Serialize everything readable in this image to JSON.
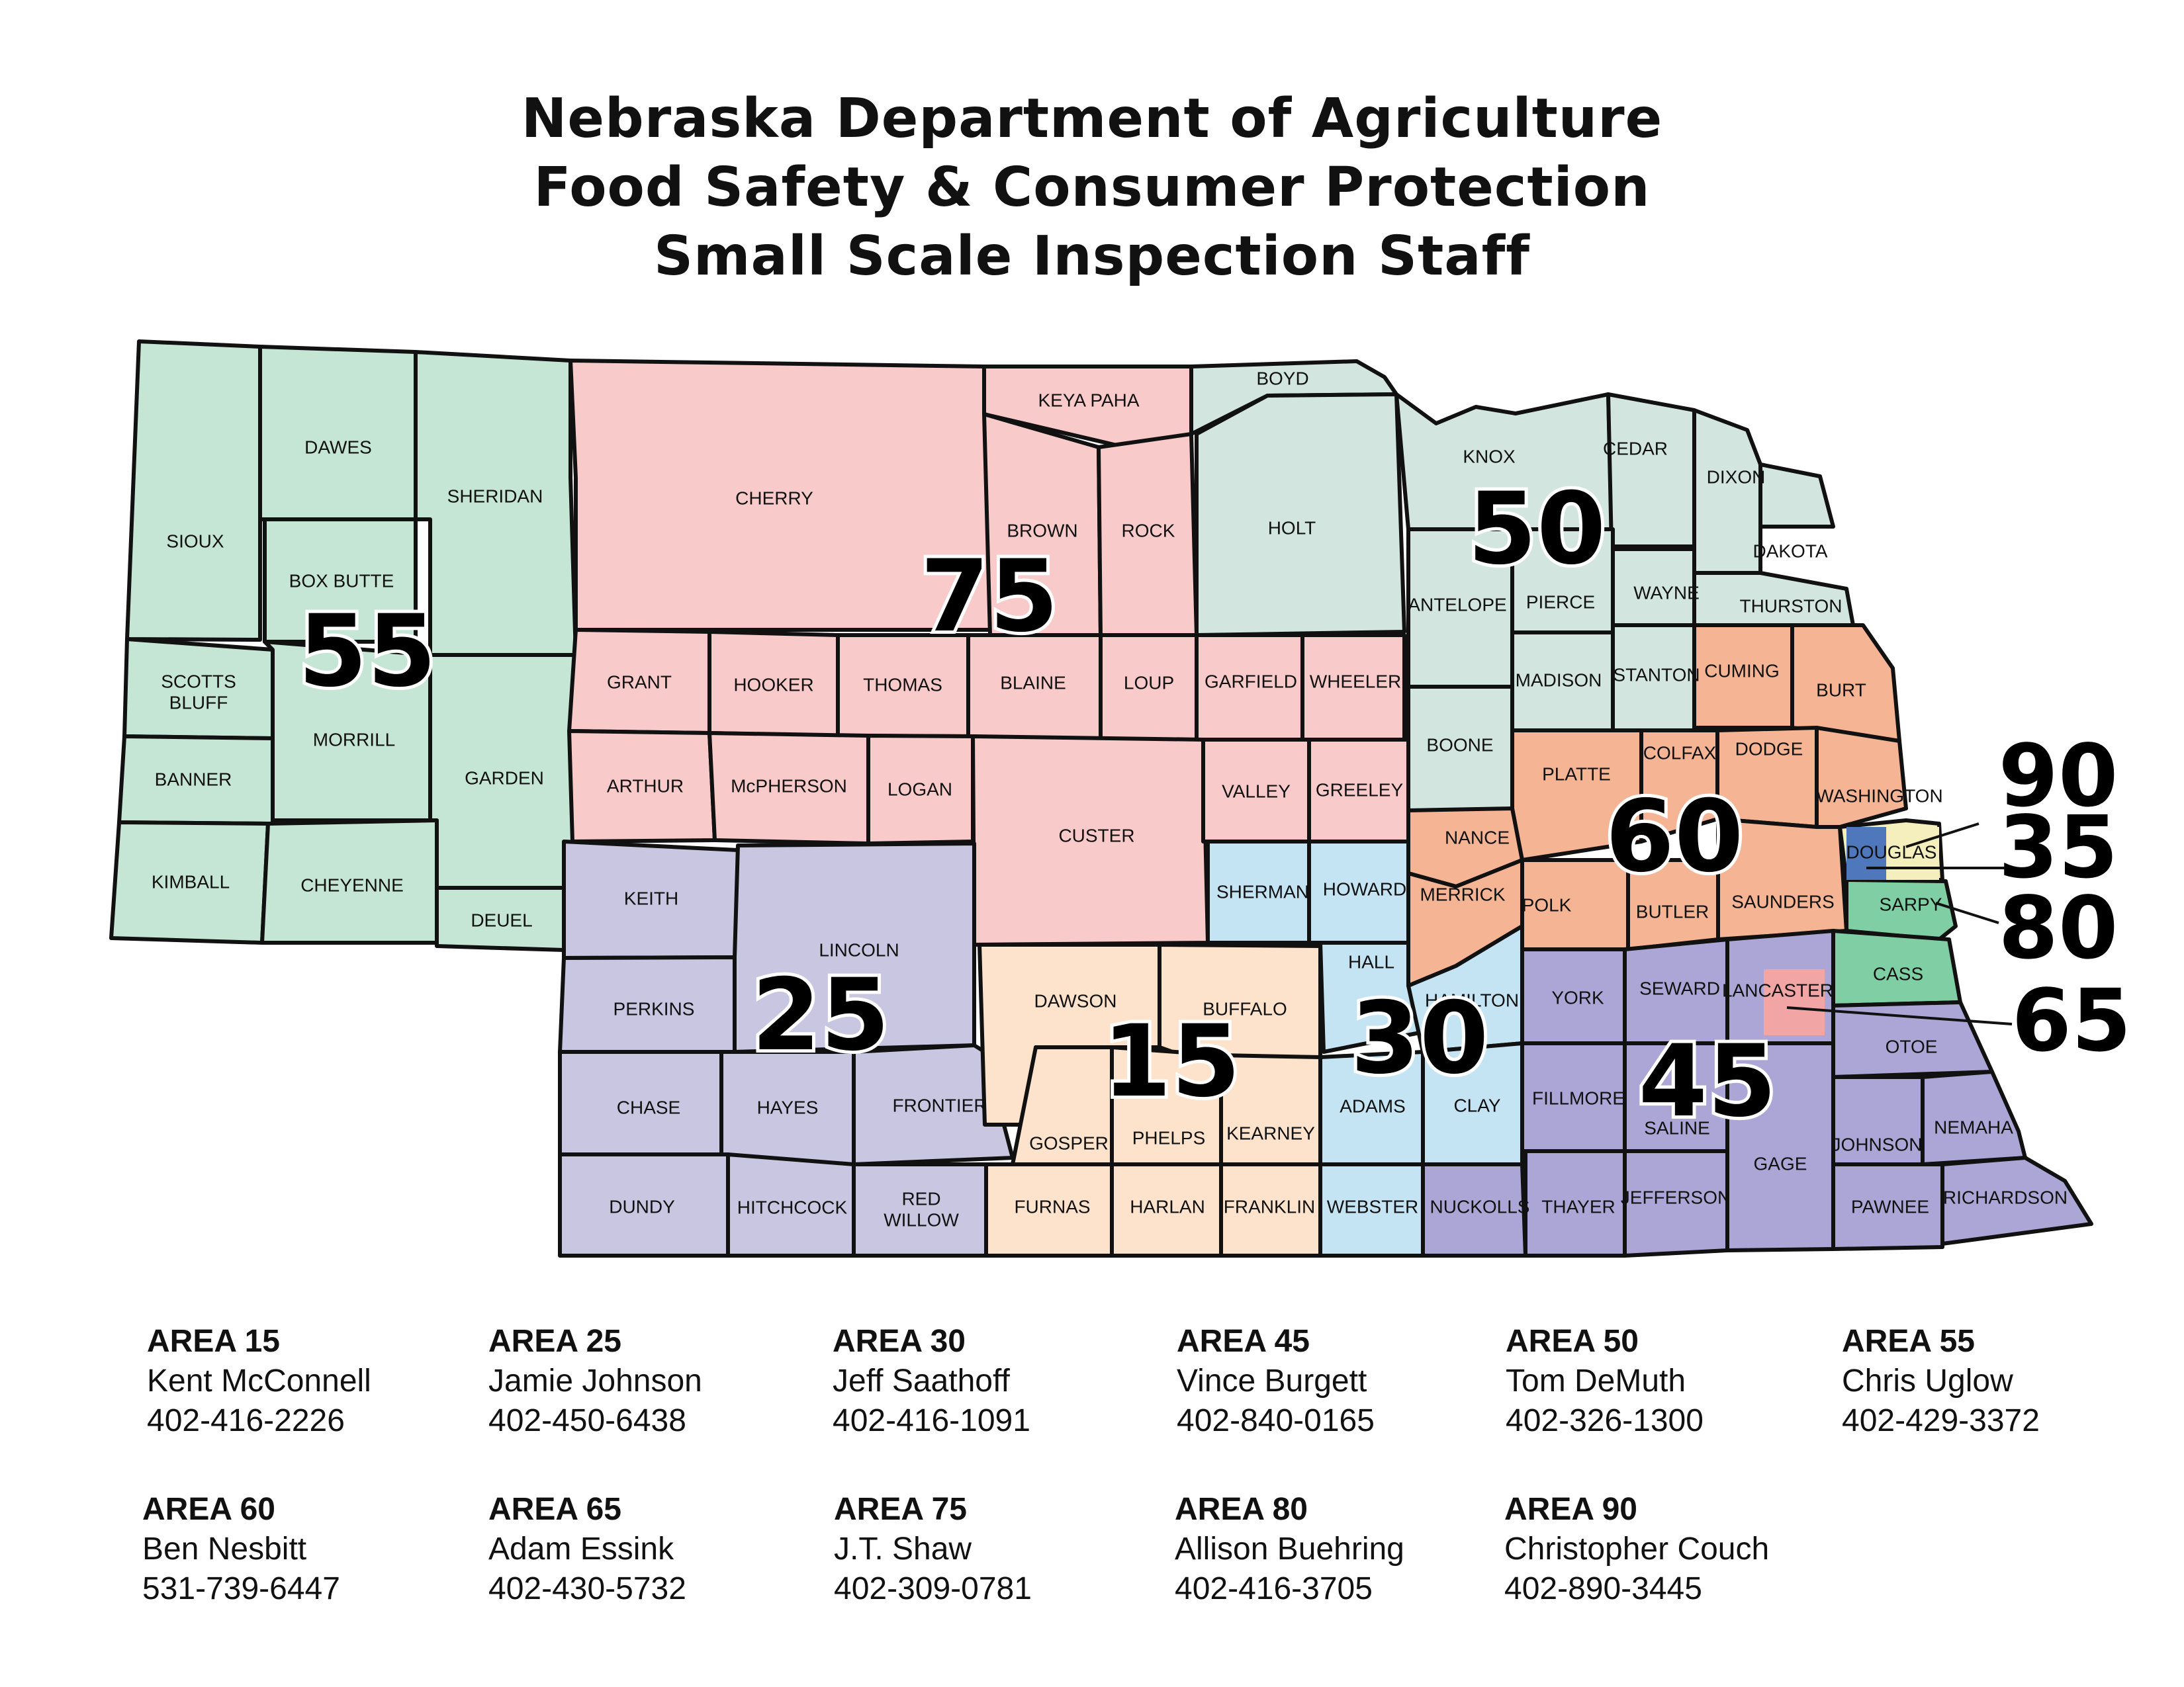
{
  "title": {
    "line1": "Nebraska Department of Agriculture",
    "line2": "Food Safety & Consumer Protection",
    "line3": "Small Scale Inspection Staff"
  },
  "colors": {
    "area15": "#fde3cc",
    "area25": "#c9c6e1",
    "area30": "#c5e4f3",
    "area45": "#aca6d6",
    "area50": "#d2e6df",
    "area55": "#c6e6d5",
    "area60": "#f5b595",
    "area65": "#f2a5a5",
    "area75": "#f8caca",
    "area80": "#7fcea4",
    "area90": "#f4efbd",
    "area35": "#4f77bb"
  },
  "counties": [
    {
      "name": "SIOUX",
      "area": "55"
    },
    {
      "name": "DAWES",
      "area": "55"
    },
    {
      "name": "SHERIDAN",
      "area": "55"
    },
    {
      "name": "BOX BUTTE",
      "area": "55"
    },
    {
      "name": "SCOTTS BLUFF",
      "area": "55"
    },
    {
      "name": "MORRILL",
      "area": "55"
    },
    {
      "name": "BANNER",
      "area": "55"
    },
    {
      "name": "GARDEN",
      "area": "55"
    },
    {
      "name": "KIMBALL",
      "area": "55"
    },
    {
      "name": "CHEYENNE",
      "area": "55"
    },
    {
      "name": "DEUEL",
      "area": "55"
    },
    {
      "name": "CHERRY",
      "area": "75"
    },
    {
      "name": "KEYA PAHA",
      "area": "75"
    },
    {
      "name": "BROWN",
      "area": "75"
    },
    {
      "name": "ROCK",
      "area": "75"
    },
    {
      "name": "GRANT",
      "area": "75"
    },
    {
      "name": "HOOKER",
      "area": "75"
    },
    {
      "name": "THOMAS",
      "area": "75"
    },
    {
      "name": "BLAINE",
      "area": "75"
    },
    {
      "name": "LOUP",
      "area": "75"
    },
    {
      "name": "GARFIELD",
      "area": "75"
    },
    {
      "name": "WHEELER",
      "area": "75"
    },
    {
      "name": "ARTHUR",
      "area": "75"
    },
    {
      "name": "McPHERSON",
      "area": "75"
    },
    {
      "name": "LOGAN",
      "area": "75"
    },
    {
      "name": "CUSTER",
      "area": "75"
    },
    {
      "name": "VALLEY",
      "area": "75"
    },
    {
      "name": "GREELEY",
      "area": "75"
    },
    {
      "name": "BOYD",
      "area": "50"
    },
    {
      "name": "HOLT",
      "area": "50"
    },
    {
      "name": "KNOX",
      "area": "50"
    },
    {
      "name": "CEDAR",
      "area": "50"
    },
    {
      "name": "DIXON",
      "area": "50"
    },
    {
      "name": "DAKOTA",
      "area": "50"
    },
    {
      "name": "ANTELOPE",
      "area": "50"
    },
    {
      "name": "PIERCE",
      "area": "50"
    },
    {
      "name": "WAYNE",
      "area": "50"
    },
    {
      "name": "THURSTON",
      "area": "50"
    },
    {
      "name": "MADISON",
      "area": "50"
    },
    {
      "name": "STANTON",
      "area": "50"
    },
    {
      "name": "BOONE",
      "area": "50"
    },
    {
      "name": "CUMING",
      "area": "60"
    },
    {
      "name": "BURT",
      "area": "60"
    },
    {
      "name": "PLATTE",
      "area": "60"
    },
    {
      "name": "COLFAX",
      "area": "60"
    },
    {
      "name": "DODGE",
      "area": "60"
    },
    {
      "name": "WASHINGTON",
      "area": "60"
    },
    {
      "name": "NANCE",
      "area": "60"
    },
    {
      "name": "MERRICK",
      "area": "60"
    },
    {
      "name": "POLK",
      "area": "60"
    },
    {
      "name": "BUTLER",
      "area": "60"
    },
    {
      "name": "SAUNDERS",
      "area": "60"
    },
    {
      "name": "DOUGLAS",
      "area": "90 / 35"
    },
    {
      "name": "SARPY",
      "area": "80"
    },
    {
      "name": "CASS",
      "area": "80"
    },
    {
      "name": "KEITH",
      "area": "25"
    },
    {
      "name": "LINCOLN",
      "area": "25"
    },
    {
      "name": "PERKINS",
      "area": "25"
    },
    {
      "name": "CHASE",
      "area": "25"
    },
    {
      "name": "HAYES",
      "area": "25"
    },
    {
      "name": "FRONTIER",
      "area": "25"
    },
    {
      "name": "DUNDY",
      "area": "25"
    },
    {
      "name": "HITCHCOCK",
      "area": "25"
    },
    {
      "name": "RED WILLOW",
      "area": "25"
    },
    {
      "name": "DAWSON",
      "area": "15"
    },
    {
      "name": "BUFFALO",
      "area": "15"
    },
    {
      "name": "GOSPER",
      "area": "15"
    },
    {
      "name": "PHELPS",
      "area": "15"
    },
    {
      "name": "KEARNEY",
      "area": "15"
    },
    {
      "name": "FURNAS",
      "area": "15"
    },
    {
      "name": "HARLAN",
      "area": "15"
    },
    {
      "name": "FRANKLIN",
      "area": "15"
    },
    {
      "name": "SHERMAN",
      "area": "30"
    },
    {
      "name": "HOWARD",
      "area": "30"
    },
    {
      "name": "HALL",
      "area": "30"
    },
    {
      "name": "HAMILTON",
      "area": "30"
    },
    {
      "name": "ADAMS",
      "area": "30"
    },
    {
      "name": "CLAY",
      "area": "30"
    },
    {
      "name": "WEBSTER",
      "area": "30"
    },
    {
      "name": "NUCKOLLS",
      "area": "45"
    },
    {
      "name": "YORK",
      "area": "45"
    },
    {
      "name": "SEWARD",
      "area": "45"
    },
    {
      "name": "LANCASTER",
      "area": "45 / 65"
    },
    {
      "name": "FILLMORE",
      "area": "45"
    },
    {
      "name": "SALINE",
      "area": "45"
    },
    {
      "name": "THAYER",
      "area": "45"
    },
    {
      "name": "JEFFERSON",
      "area": "45"
    },
    {
      "name": "GAGE",
      "area": "45"
    },
    {
      "name": "OTOE",
      "area": "45"
    },
    {
      "name": "JOHNSON",
      "area": "45"
    },
    {
      "name": "NEMAHA",
      "area": "45"
    },
    {
      "name": "PAWNEE",
      "area": "45"
    },
    {
      "name": "RICHARDSON",
      "area": "45"
    }
  ],
  "area_labels": [
    "55",
    "75",
    "50",
    "60",
    "25",
    "15",
    "30",
    "45"
  ],
  "right_labels": [
    "90",
    "35",
    "80",
    "65"
  ],
  "contacts": [
    {
      "area": "AREA 15",
      "name": "Kent McConnell",
      "phone": "402-416-2226"
    },
    {
      "area": "AREA 25",
      "name": "Jamie Johnson",
      "phone": "402-450-6438"
    },
    {
      "area": "AREA 30",
      "name": "Jeff Saathoff",
      "phone": "402-416-1091"
    },
    {
      "area": "AREA 45",
      "name": "Vince Burgett",
      "phone": "402-840-0165"
    },
    {
      "area": "AREA 50",
      "name": "Tom DeMuth",
      "phone": "402-326-1300"
    },
    {
      "area": "AREA 55",
      "name": "Chris Uglow",
      "phone": "402-429-3372"
    },
    {
      "area": "AREA 60",
      "name": "Ben Nesbitt",
      "phone": "531-739-6447"
    },
    {
      "area": "AREA 65",
      "name": "Adam Essink",
      "phone": "402-430-5732"
    },
    {
      "area": "AREA 75",
      "name": "J.T. Shaw",
      "phone": "402-309-0781"
    },
    {
      "area": "AREA 80",
      "name": "Allison Buehring",
      "phone": "402-416-3705"
    },
    {
      "area": "AREA 90",
      "name": "Christopher Couch",
      "phone": "402-890-3445"
    }
  ]
}
